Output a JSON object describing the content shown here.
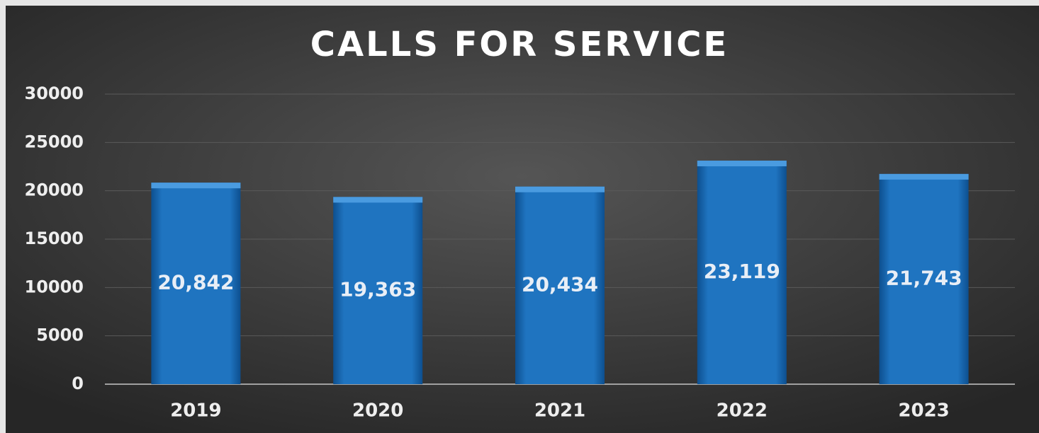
{
  "chart_data": {
    "type": "bar",
    "title": "CALLS FOR SERVICE",
    "categories": [
      "2019",
      "2020",
      "2021",
      "2022",
      "2023"
    ],
    "values": [
      20842,
      19363,
      20434,
      23119,
      21743
    ],
    "value_labels": [
      "20,842",
      "19,363",
      "20,434",
      "23,119",
      "21,743"
    ],
    "color": "#1f74c0",
    "ylim": [
      0,
      30000
    ],
    "yticks": [
      0,
      5000,
      10000,
      15000,
      20000,
      25000,
      30000
    ],
    "grid": true
  }
}
